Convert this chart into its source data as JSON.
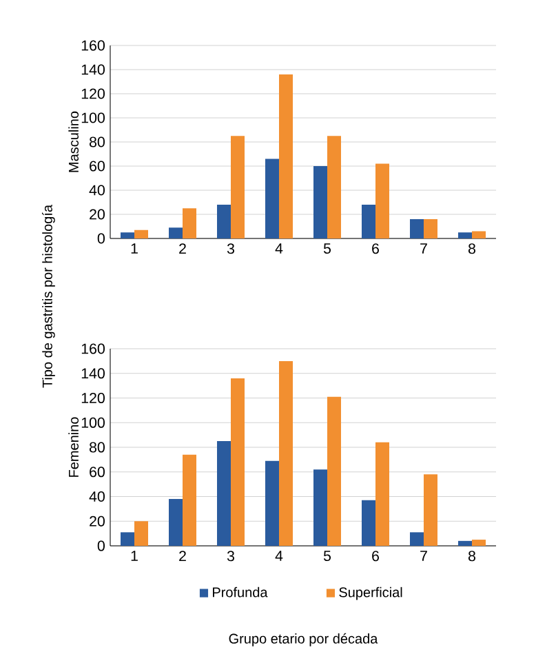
{
  "chart_data": [
    {
      "type": "bar",
      "ylabel": "Masculino",
      "categories": [
        "1",
        "2",
        "3",
        "4",
        "5",
        "6",
        "7",
        "8"
      ],
      "series": [
        {
          "color": "#2a5b9e",
          "values": [
            5,
            9,
            28,
            66,
            60,
            28,
            16,
            5
          ]
        },
        {
          "color": "#f28f30",
          "values": [
            7,
            25,
            85,
            136,
            85,
            62,
            16,
            6
          ]
        }
      ],
      "ylim": [
        0,
        160
      ],
      "yticks": [
        0,
        20,
        40,
        60,
        80,
        100,
        120,
        140,
        160
      ],
      "grid": "y",
      "annotations": [
        "Tipo de gastritis por histología"
      ]
    },
    {
      "type": "bar",
      "ylabel": "Femenino",
      "xlabel": "Grupo etario por década",
      "categories": [
        "1",
        "2",
        "3",
        "4",
        "5",
        "6",
        "7",
        "8"
      ],
      "series": [
        {
          "name": "Profunda",
          "color": "#2a5b9e",
          "values": [
            11,
            38,
            85,
            69,
            62,
            37,
            11,
            4
          ]
        },
        {
          "name": "Superficial",
          "color": "#f28f30",
          "values": [
            20,
            74,
            136,
            150,
            121,
            84,
            58,
            5
          ]
        }
      ],
      "ylim": [
        0,
        160
      ],
      "yticks": [
        0,
        20,
        40,
        60,
        80,
        100,
        120,
        140,
        160
      ],
      "grid": "y",
      "legend": "bottom"
    }
  ]
}
